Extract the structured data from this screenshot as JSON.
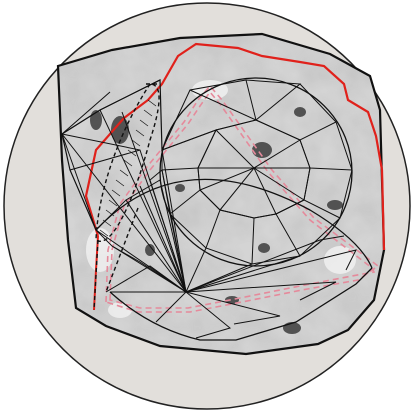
{
  "figure": {
    "description_free": true,
    "colors": {
      "background": "#ffffff",
      "disc_fill": "#e2dfdb",
      "disc_outline": "#222222",
      "stone_outline": "#111111",
      "red_outline": "#e0211b",
      "pink_dashed": "#e58a9b",
      "black_dashed": "#111111",
      "stone_light": "#d6d6d6",
      "stone_mid": "#a9a9a9",
      "stone_dark": "#4a4a4a"
    },
    "icons": [
      "gemstone-rough-photo",
      "faceted-cut-wireframe"
    ]
  }
}
